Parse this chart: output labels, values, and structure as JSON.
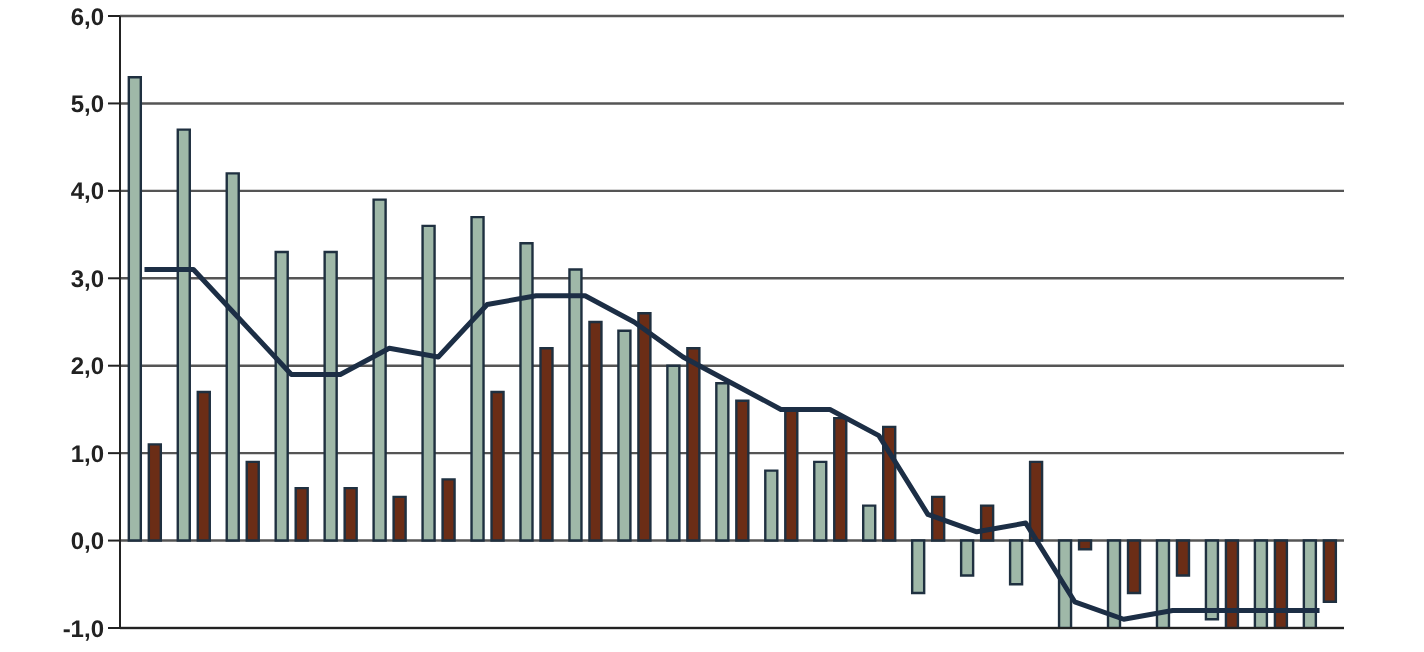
{
  "chart_data": {
    "type": "bar",
    "categories": [
      null,
      null,
      null,
      null,
      null,
      null,
      null,
      null,
      null,
      null,
      null,
      null,
      null,
      null,
      null,
      null,
      null,
      null,
      null,
      null,
      null,
      null,
      null,
      null,
      null
    ],
    "series": [
      {
        "color": "#9fb8a8",
        "values": [
          5.3,
          4.7,
          4.2,
          3.3,
          3.3,
          3.9,
          3.6,
          3.7,
          3.4,
          3.1,
          2.4,
          2.0,
          1.8,
          0.8,
          0.9,
          0.4,
          -0.6,
          -0.4,
          -0.5,
          -1.0,
          -1.0,
          -1.0,
          -0.9,
          -1.0,
          -1.0
        ]
      },
      {
        "color": "#6b2d16",
        "values": [
          1.1,
          1.7,
          0.9,
          0.6,
          0.6,
          0.5,
          0.7,
          1.7,
          2.2,
          2.5,
          2.6,
          2.2,
          1.6,
          1.5,
          1.4,
          1.3,
          0.5,
          0.4,
          0.9,
          -0.1,
          -0.6,
          -0.4,
          -1.0,
          -1.0,
          -0.7
        ]
      },
      {
        "type": "line",
        "color": "#1c2e45",
        "values": [
          3.1,
          3.1,
          2.5,
          1.9,
          1.9,
          2.2,
          2.1,
          2.7,
          2.8,
          2.8,
          2.5,
          2.1,
          1.8,
          1.5,
          1.5,
          1.2,
          0.3,
          0.1,
          0.2,
          -0.7,
          -0.9,
          -0.8,
          -0.8,
          -0.8,
          -0.8
        ]
      }
    ],
    "ylim": [
      -1,
      6
    ],
    "yticks": [
      {
        "value": -1,
        "label": "-1,0"
      },
      {
        "value": 0,
        "label": "0,0"
      },
      {
        "value": 1,
        "label": "1,0"
      },
      {
        "value": 2,
        "label": "2,0"
      },
      {
        "value": 3,
        "label": "3,0"
      },
      {
        "value": 4,
        "label": "4,0"
      },
      {
        "value": 5,
        "label": "5,0"
      },
      {
        "value": 6,
        "label": "6,0"
      }
    ],
    "grid": "y",
    "legend": false,
    "marker": "none",
    "line_style": "solid",
    "tick_labels": "y"
  }
}
